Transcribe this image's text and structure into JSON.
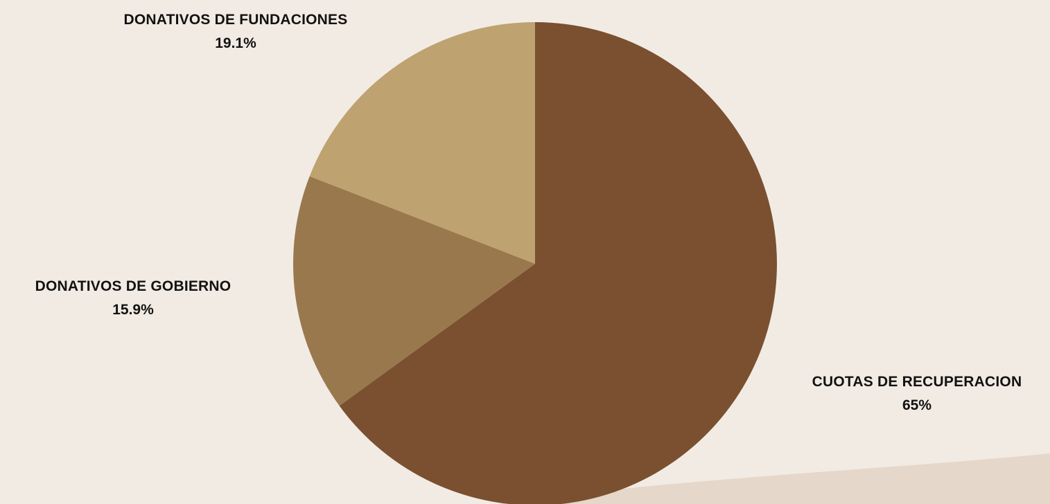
{
  "colors": {
    "background": "#f2ebe3",
    "background_shape": "#e5d7c9",
    "label_text": "#121212"
  },
  "chart_data": {
    "type": "pie",
    "title": "",
    "legend": "none",
    "slices": [
      {
        "label": "CUOTAS DE RECUPERACION",
        "value": 65,
        "display": "65%",
        "color": "#7a5030"
      },
      {
        "label": "DONATIVOS DE GOBIERNO",
        "value": 15.9,
        "display": "15.9%",
        "color": "#9a784e"
      },
      {
        "label": "DONATIVOS DE FUNDACIONES",
        "value": 19.1,
        "display": "19.1%",
        "color": "#bea270"
      }
    ]
  }
}
